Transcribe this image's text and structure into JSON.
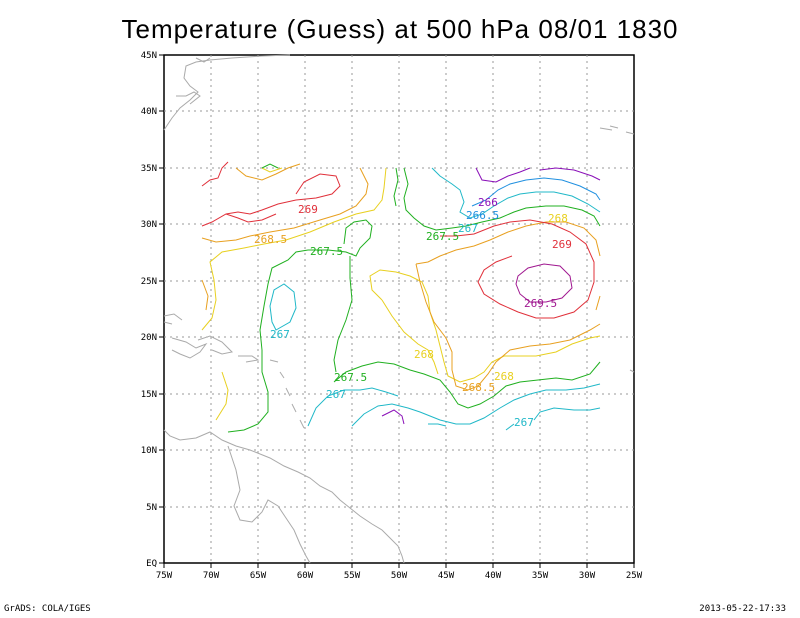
{
  "title": "Temperature (Guess) at 500 hPa 08/01 1830",
  "footer": {
    "left": "GrADS: COLA/IGES",
    "right": "2013-05-22-17:33"
  },
  "axes": {
    "lon_labels": [
      "75W",
      "70W",
      "65W",
      "60W",
      "55W",
      "50W",
      "45W",
      "40W",
      "35W",
      "30W",
      "25W"
    ],
    "lat_labels": [
      "EQ",
      "5N",
      "10N",
      "15N",
      "20N",
      "25N",
      "30N",
      "35N",
      "40N",
      "45N"
    ]
  },
  "contour_labels": [
    {
      "text": "269",
      "color": "#e0303a"
    },
    {
      "text": "268.5",
      "color": "#e8a020"
    },
    {
      "text": "267.5",
      "color": "#20b020"
    },
    {
      "text": "267",
      "color": "#20b8c8"
    },
    {
      "text": "266",
      "color": "#8a10b8"
    },
    {
      "text": "266.5",
      "color": "#2090e0"
    },
    {
      "text": "267",
      "color": "#20b8c8"
    },
    {
      "text": "268",
      "color": "#e8d020"
    },
    {
      "text": "267.5",
      "color": "#20b020"
    },
    {
      "text": "269",
      "color": "#e0303a"
    },
    {
      "text": "269.5",
      "color": "#a01890"
    },
    {
      "text": "268",
      "color": "#e8d020"
    },
    {
      "text": "267.5",
      "color": "#20b020"
    },
    {
      "text": "267",
      "color": "#20b8c8"
    },
    {
      "text": "268.5",
      "color": "#e8a020"
    },
    {
      "text": "268",
      "color": "#e8d020"
    },
    {
      "text": "267",
      "color": "#20b8c8"
    }
  ],
  "colors": {
    "c266": "#8a10b8",
    "c2665": "#2090e0",
    "c267": "#20b8c8",
    "c2675": "#20b020",
    "c268": "#e8d020",
    "c2685": "#e8a020",
    "c269": "#e0303a",
    "c2695": "#a01890",
    "coast": "#aaaaaa",
    "grid": "#999999"
  }
}
